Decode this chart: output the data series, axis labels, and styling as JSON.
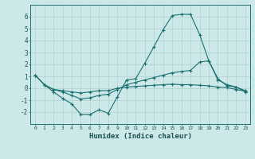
{
  "xlabel": "Humidex (Indice chaleur)",
  "background_color": "#cde8e8",
  "grid_color": "#b0d0d0",
  "line_color": "#1a7070",
  "x": [
    0,
    1,
    2,
    3,
    4,
    5,
    6,
    7,
    8,
    9,
    10,
    11,
    12,
    13,
    14,
    15,
    16,
    17,
    18,
    19,
    20,
    21,
    22,
    23
  ],
  "line1": [
    1.1,
    0.3,
    -0.3,
    -0.85,
    -1.3,
    -2.2,
    -2.2,
    -1.8,
    -2.1,
    -0.7,
    0.7,
    0.8,
    2.1,
    3.5,
    4.9,
    6.1,
    6.2,
    6.2,
    4.5,
    2.3,
    0.8,
    0.2,
    0.1,
    -0.3
  ],
  "line2": [
    1.1,
    0.3,
    -0.1,
    -0.3,
    -0.6,
    -0.9,
    -0.8,
    -0.6,
    -0.5,
    -0.1,
    0.3,
    0.5,
    0.7,
    0.9,
    1.1,
    1.3,
    1.4,
    1.5,
    2.2,
    2.3,
    0.7,
    0.3,
    0.1,
    -0.2
  ],
  "line3": [
    1.1,
    0.3,
    -0.1,
    -0.2,
    -0.3,
    -0.4,
    -0.3,
    -0.2,
    -0.2,
    0.0,
    0.1,
    0.15,
    0.2,
    0.25,
    0.3,
    0.35,
    0.3,
    0.3,
    0.25,
    0.2,
    0.1,
    0.05,
    -0.1,
    -0.25
  ],
  "ylim": [
    -3,
    7
  ],
  "xlim": [
    -0.5,
    23.5
  ],
  "yticks": [
    -2,
    -1,
    0,
    1,
    2,
    3,
    4,
    5,
    6
  ],
  "xticks": [
    0,
    1,
    2,
    3,
    4,
    5,
    6,
    7,
    8,
    9,
    10,
    11,
    12,
    13,
    14,
    15,
    16,
    17,
    18,
    19,
    20,
    21,
    22,
    23
  ]
}
